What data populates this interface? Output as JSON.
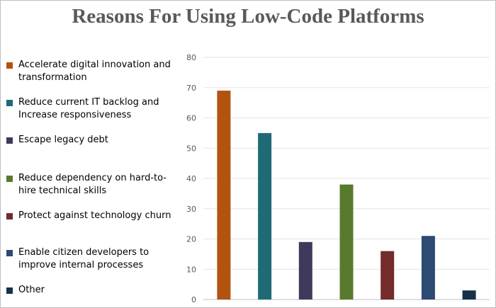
{
  "chart_data": {
    "type": "bar",
    "title": "Reasons For Using Low-Code Platforms",
    "xlabel": "",
    "ylabel": "",
    "ylim": [
      0,
      80
    ],
    "yticks": [
      0,
      10,
      20,
      30,
      40,
      50,
      60,
      70,
      80
    ],
    "grid": true,
    "legend_position": "left",
    "categories": [
      "Accelerate digital innovation and transformation",
      "Reduce current IT backlog and Increase responsiveness",
      "Escape legacy debt",
      "Reduce dependency on hard-to-hire technical skills",
      "Protect against technology churn",
      "Enable citizen developers to improve internal processes",
      "Other"
    ],
    "values": [
      69,
      55,
      19,
      38,
      16,
      21,
      3
    ],
    "colors": [
      "#b2540f",
      "#1f6b75",
      "#3f3a5c",
      "#587a2c",
      "#732b2b",
      "#2c4a72",
      "#16324a"
    ]
  }
}
